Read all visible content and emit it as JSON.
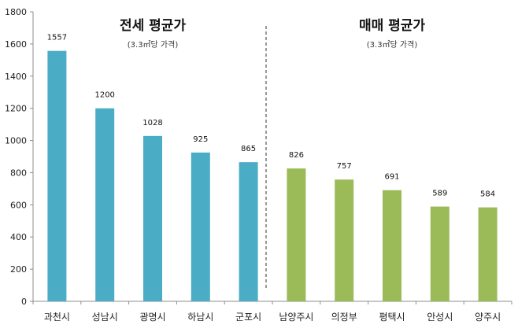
{
  "chart_data": {
    "type": "bar",
    "categories": [
      "과천시",
      "성남시",
      "광명시",
      "하남시",
      "군포시",
      "남양주시",
      "의정부",
      "평택시",
      "안성시",
      "양주시"
    ],
    "values": [
      1557,
      1200,
      1028,
      925,
      865,
      826,
      757,
      691,
      589,
      584
    ],
    "value_labels": [
      "1557",
      "1200",
      "1028",
      "925",
      "865",
      "826",
      "757",
      "691",
      "589",
      "584"
    ],
    "ylim": [
      0,
      1800
    ],
    "yticks": [
      0,
      200,
      400,
      600,
      800,
      1000,
      1200,
      1400,
      1600,
      1800
    ],
    "grid": false,
    "groups": [
      {
        "title": "전세 평균가",
        "subtitle": "(3.3㎡당 가격)",
        "start": 0,
        "end": 4,
        "color": "#4bacc6"
      },
      {
        "title": "매매 평균가",
        "subtitle": "(3.3㎡당 가격)",
        "start": 5,
        "end": 9,
        "color": "#9bbb59"
      }
    ],
    "divider": "dashed line between 군포시 and 남양주시"
  }
}
